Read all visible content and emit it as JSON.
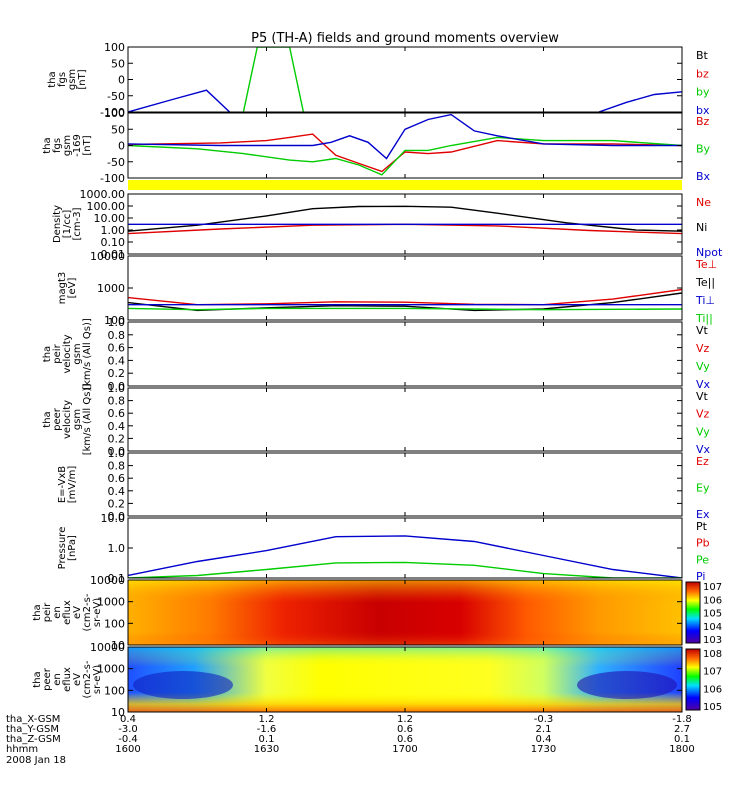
{
  "title": "P5 (TH-A) fields and ground moments overview",
  "colors": {
    "black": "#000000",
    "red": "#e00000",
    "green": "#00cc00",
    "blue": "#0000cc",
    "yellow": "#ffff00",
    "panel_border": "#000000"
  },
  "panels": [
    {
      "id": "fgs",
      "ylabel": [
        "tha",
        "fgs",
        "gsm",
        "[nT]"
      ],
      "yticks": [
        "100",
        "50",
        "0",
        "-50",
        "-100"
      ],
      "legend": [
        {
          "text": "Bt",
          "color": "black"
        },
        {
          "text": "bz",
          "color": "red"
        },
        {
          "text": "by",
          "color": "green"
        },
        {
          "text": "bx",
          "color": "blue"
        }
      ]
    },
    {
      "id": "fgs2",
      "ylabel": [
        "tha",
        "fgs",
        "gsm",
        "-169",
        "[nT]"
      ],
      "yticks": [
        "100",
        "50",
        "0",
        "-50",
        "-100"
      ],
      "legend": [
        {
          "text": "Bz",
          "color": "red"
        },
        {
          "text": "By",
          "color": "green"
        },
        {
          "text": "Bx",
          "color": "blue"
        }
      ]
    },
    {
      "id": "flag",
      "ylabel": [],
      "yticks": [],
      "legend": []
    },
    {
      "id": "density",
      "ylabel": [
        "Density",
        "[1/cc]",
        "[cm^-3]"
      ],
      "yticks": [
        "1000.00",
        "100.00",
        "10.00",
        "1.00",
        "0.10",
        "0.01"
      ],
      "legend": [
        {
          "text": "Ne",
          "color": "red"
        },
        {
          "text": "Ni",
          "color": "black"
        },
        {
          "text": "Npot",
          "color": "blue"
        }
      ]
    },
    {
      "id": "temp",
      "ylabel": [
        "magt3",
        "[eV]"
      ],
      "yticks": [
        "10000",
        "1000",
        "100"
      ],
      "legend": [
        {
          "text": "Te⊥",
          "color": "red"
        },
        {
          "text": "Te||",
          "color": "black"
        },
        {
          "text": "Ti⊥",
          "color": "blue"
        },
        {
          "text": "Ti||",
          "color": "green"
        }
      ]
    },
    {
      "id": "peir_vel",
      "ylabel": [
        "tha",
        "peir",
        "velocity",
        "gsm",
        "[km/s (All Qs)]"
      ],
      "yticks": [
        "1.0",
        "0.8",
        "0.6",
        "0.4",
        "0.2",
        "0.0"
      ],
      "legend": [
        {
          "text": "Vt",
          "color": "black"
        },
        {
          "text": "Vz",
          "color": "red"
        },
        {
          "text": "Vy",
          "color": "green"
        },
        {
          "text": "Vx",
          "color": "blue"
        }
      ]
    },
    {
      "id": "peer_vel",
      "ylabel": [
        "tha",
        "peer",
        "velocity",
        "gsm",
        "[km/s (All Qs)]"
      ],
      "yticks": [
        "1.0",
        "0.8",
        "0.6",
        "0.4",
        "0.2",
        "0.0"
      ],
      "legend": [
        {
          "text": "Vt",
          "color": "black"
        },
        {
          "text": "Vz",
          "color": "red"
        },
        {
          "text": "Vy",
          "color": "green"
        },
        {
          "text": "Vx",
          "color": "blue"
        }
      ]
    },
    {
      "id": "efield",
      "ylabel": [
        "E=-VxB",
        "[mV/m]"
      ],
      "yticks": [
        "1.0",
        "0.8",
        "0.6",
        "0.4",
        "0.2",
        "0.0"
      ],
      "legend": [
        {
          "text": "Ez",
          "color": "red"
        },
        {
          "text": "Ey",
          "color": "green"
        },
        {
          "text": "Ex",
          "color": "blue"
        }
      ]
    },
    {
      "id": "pressure",
      "ylabel": [
        "Pressure",
        "[nPa]"
      ],
      "yticks": [
        "10.0",
        "1.0",
        "0.1"
      ],
      "legend": [
        {
          "text": "Pt",
          "color": "black"
        },
        {
          "text": "Pb",
          "color": "red"
        },
        {
          "text": "Pe",
          "color": "green"
        },
        {
          "text": "Pi",
          "color": "blue"
        }
      ]
    },
    {
      "id": "peir_eflux",
      "ylabel": [
        "tha",
        "peir",
        "en",
        "eflux",
        "eV",
        "(cm^2-s-",
        "sr-eV)"
      ],
      "yticks": [
        "10000",
        "1000",
        "100",
        "10"
      ],
      "colorbar": [
        "10^7",
        "10^6",
        "10^5",
        "10^4",
        "10^3"
      ]
    },
    {
      "id": "peer_eflux",
      "ylabel": [
        "tha",
        "peer",
        "en",
        "eflux",
        "eV",
        "(cm^2-s-",
        "sr-eV)"
      ],
      "yticks": [
        "10000",
        "1000",
        "100",
        "10"
      ],
      "colorbar": [
        "10^8",
        "10^7",
        "10^6",
        "10^5"
      ]
    }
  ],
  "x_axis": {
    "row_labels": [
      "tha_X-GSM",
      "tha_Y-GSM",
      "tha_Z-GSM",
      "hhmm",
      "2008 Jan 18"
    ],
    "columns": [
      [
        "0.4",
        "-3.0",
        "-0.4",
        "1600"
      ],
      [
        "1.2",
        "-1.6",
        "0.1",
        "1630"
      ],
      [
        "1.2",
        "0.6",
        "0.6",
        "1700"
      ],
      [
        "-0.3",
        "2.1",
        "0.4",
        "1730"
      ],
      [
        "-1.8",
        "2.7",
        "0.1",
        "1800"
      ]
    ]
  },
  "chart_data": {
    "type": "line",
    "x_units": "hhmm",
    "x": [
      "1600",
      "1630",
      "1700",
      "1730",
      "1800"
    ],
    "panels": [
      {
        "name": "fgs",
        "ylim": [
          -100,
          100
        ],
        "series": [
          {
            "name": "bx",
            "color": "blue",
            "t": [
              1600,
              1610,
              1617,
              1622,
              1638,
              1652,
              1700,
              1742,
              1748,
              1754,
              1800
            ],
            "v": [
              -100,
              -60,
              -33,
              -100,
              null,
              null,
              null,
              -100,
              -70,
              -46,
              -38
            ]
          },
          {
            "name": "by",
            "color": "green",
            "t": [
              1625,
              1628,
              1635,
              1638
            ],
            "v": [
              -100,
              100,
              100,
              -100
            ]
          }
        ]
      },
      {
        "name": "fgs2",
        "ylim": [
          -100,
          100
        ],
        "series": [
          {
            "name": "Bz",
            "color": "red",
            "t": [
              1600,
              1620,
              1630,
              1635,
              1640,
              1645,
              1650,
              1655,
              1700,
              1705,
              1710,
              1720,
              1730,
              1745,
              1800
            ],
            "v": [
              3,
              8,
              15,
              25,
              35,
              -30,
              -55,
              -80,
              -20,
              -25,
              -20,
              15,
              5,
              5,
              0
            ]
          },
          {
            "name": "By",
            "color": "green",
            "t": [
              1600,
              1615,
              1625,
              1635,
              1640,
              1645,
              1650,
              1655,
              1700,
              1705,
              1710,
              1720,
              1730,
              1745,
              1800
            ],
            "v": [
              0,
              -10,
              -25,
              -45,
              -50,
              -40,
              -60,
              -90,
              -15,
              -15,
              0,
              25,
              15,
              15,
              0
            ]
          },
          {
            "name": "Bx",
            "color": "blue",
            "t": [
              1600,
              1620,
              1640,
              1644,
              1648,
              1652,
              1656,
              1700,
              1705,
              1710,
              1715,
              1720,
              1730,
              1745,
              1800
            ],
            "v": [
              5,
              0,
              0,
              10,
              30,
              10,
              -40,
              50,
              80,
              95,
              45,
              30,
              5,
              0,
              0
            ]
          }
        ]
      },
      {
        "name": "Density",
        "scale": "log",
        "ylim": [
          0.01,
          1000
        ],
        "series": [
          {
            "name": "Ni",
            "color": "black",
            "t": [
              1600,
              1615,
              1630,
              1640,
              1650,
              1700,
              1710,
              1720,
              1735,
              1750,
              1800
            ],
            "v": [
              0.8,
              2.5,
              15,
              60,
              90,
              95,
              80,
              25,
              4,
              1,
              0.8
            ]
          },
          {
            "name": "Ne",
            "color": "red",
            "t": [
              1600,
              1620,
              1640,
              1700,
              1720,
              1740,
              1800
            ],
            "v": [
              0.5,
              1.2,
              2.5,
              3.0,
              2.2,
              0.9,
              0.5
            ]
          },
          {
            "name": "Npot",
            "color": "blue",
            "t": [
              1600,
              1800
            ],
            "v": [
              3,
              3
            ]
          }
        ]
      },
      {
        "name": "magt3",
        "scale": "log",
        "ylim": [
          100,
          10000
        ],
        "series": [
          {
            "name": "Te⊥",
            "color": "red",
            "t": [
              1600,
              1615,
              1630,
              1645,
              1700,
              1715,
              1730,
              1745,
              1800
            ],
            "v": [
              500,
              300,
              320,
              370,
              360,
              310,
              300,
              450,
              900
            ]
          },
          {
            "name": "Te||",
            "color": "black",
            "t": [
              1600,
              1615,
              1630,
              1645,
              1700,
              1715,
              1730,
              1745,
              1800
            ],
            "v": [
              350,
              200,
              240,
              280,
              270,
              200,
              220,
              350,
              700
            ]
          },
          {
            "name": "Ti⊥",
            "color": "blue",
            "t": [
              1600,
              1800
            ],
            "v": [
              300,
              300
            ]
          },
          {
            "name": "Ti||",
            "color": "green",
            "t": [
              1600,
              1615,
              1630,
              1700,
              1730,
              1800
            ],
            "v": [
              230,
              210,
              230,
              230,
              210,
              220
            ]
          }
        ]
      },
      {
        "name": "peir velocity",
        "ylim": [
          0,
          1
        ],
        "series": []
      },
      {
        "name": "peer velocity",
        "ylim": [
          0,
          1
        ],
        "series": []
      },
      {
        "name": "E=-VxB",
        "ylim": [
          0,
          1
        ],
        "series": []
      },
      {
        "name": "Pressure",
        "scale": "log",
        "ylim": [
          0.03,
          30
        ],
        "series": [
          {
            "name": "Pi",
            "color": "blue",
            "t": [
              1600,
              1615,
              1630,
              1645,
              1700,
              1715,
              1730,
              1745,
              1800
            ],
            "v": [
              0.04,
              0.2,
              0.7,
              3.5,
              3.8,
              2.0,
              0.4,
              0.08,
              0.03
            ]
          },
          {
            "name": "Pe",
            "color": "green",
            "t": [
              1600,
              1615,
              1630,
              1645,
              1700,
              1715,
              1730,
              1745,
              1800
            ],
            "v": [
              0.03,
              0.04,
              0.08,
              0.17,
              0.18,
              0.13,
              0.05,
              0.03,
              0.03
            ]
          }
        ]
      },
      {
        "name": "peir eflux",
        "type": "heatmap",
        "yscale": "log",
        "ylim": [
          5,
          20000
        ],
        "zrange": [
          "10^3",
          "10^7"
        ]
      },
      {
        "name": "peer eflux",
        "type": "heatmap",
        "yscale": "log",
        "ylim": [
          5,
          20000
        ],
        "zrange": [
          "10^5",
          "10^8"
        ]
      }
    ]
  }
}
